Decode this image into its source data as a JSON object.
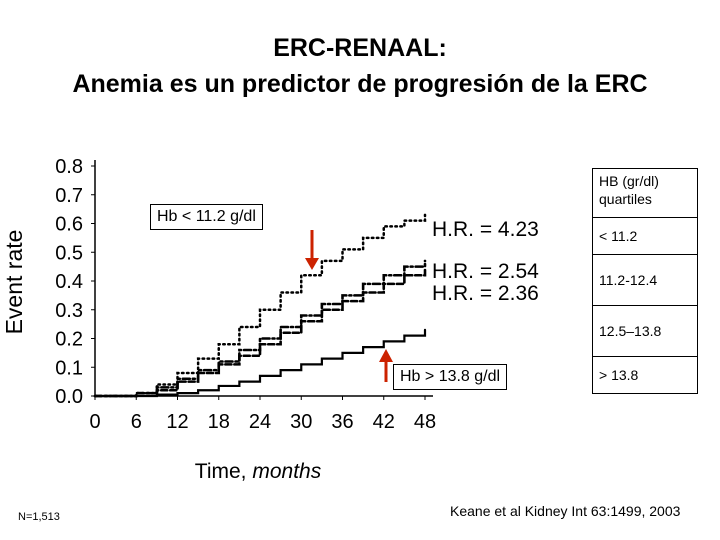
{
  "title_line1": "ERC-RENAAL:",
  "title_line2": "Anemia es un predictor de progresión de la ERC",
  "callout_low": "Hb < 11.2 g/dl",
  "callout_high": "Hb > 13.8 g/dl",
  "legend": {
    "title": "HB (gr/dl) quartiles",
    "items": [
      "< 11.2",
      "11.2-12.4",
      "12.5–13.8",
      "> 13.8"
    ]
  },
  "n_label": "N=1,513",
  "citation": "Keane et al Kidney Int 63:1499, 2003",
  "colors": {
    "callout_arrow": "#cc2200"
  },
  "chart_data": {
    "type": "line",
    "xlabel": "Time, months",
    "ylabel": "Event rate",
    "xlim": [
      0,
      48
    ],
    "ylim": [
      0,
      0.8
    ],
    "xticks": [
      0,
      6,
      12,
      18,
      24,
      30,
      36,
      42,
      48
    ],
    "yticks": [
      "0.0",
      "0.1",
      "0.2",
      "0.3",
      "0.4",
      "0.5",
      "0.6",
      "0.7",
      "0.8"
    ],
    "series": [
      {
        "name": "< 11.2",
        "annotation": "H.R. = 4.23",
        "style": "dotted",
        "x": [
          0,
          4,
          6,
          9,
          12,
          15,
          18,
          21,
          24,
          27,
          30,
          33,
          36,
          39,
          42,
          45,
          48
        ],
        "y": [
          0,
          0.0,
          0.01,
          0.04,
          0.08,
          0.13,
          0.18,
          0.24,
          0.3,
          0.36,
          0.42,
          0.47,
          0.51,
          0.55,
          0.59,
          0.61,
          0.63
        ]
      },
      {
        "name": "11.2-12.4",
        "annotation": "H.R. = 2.54",
        "style": "dash-dot",
        "x": [
          0,
          5,
          6,
          9,
          12,
          15,
          18,
          21,
          24,
          27,
          30,
          33,
          36,
          39,
          42,
          45,
          48
        ],
        "y": [
          0,
          0.0,
          0.01,
          0.03,
          0.06,
          0.09,
          0.12,
          0.16,
          0.2,
          0.24,
          0.28,
          0.32,
          0.35,
          0.39,
          0.42,
          0.45,
          0.47
        ]
      },
      {
        "name": "12.5–13.8",
        "annotation": "H.R. = 2.36",
        "style": "dashed",
        "x": [
          0,
          5,
          6,
          9,
          12,
          15,
          18,
          21,
          24,
          27,
          30,
          33,
          36,
          39,
          42,
          45,
          48
        ],
        "y": [
          0,
          0.0,
          0.01,
          0.02,
          0.05,
          0.08,
          0.11,
          0.14,
          0.18,
          0.22,
          0.26,
          0.3,
          0.33,
          0.36,
          0.39,
          0.42,
          0.44
        ]
      },
      {
        "name": "> 13.8",
        "style": "solid",
        "x": [
          0,
          6,
          9,
          12,
          15,
          18,
          21,
          24,
          27,
          30,
          33,
          36,
          39,
          42,
          45,
          48
        ],
        "y": [
          0,
          0.0,
          0.005,
          0.01,
          0.02,
          0.035,
          0.05,
          0.07,
          0.09,
          0.11,
          0.13,
          0.15,
          0.17,
          0.19,
          0.21,
          0.23
        ]
      }
    ]
  }
}
